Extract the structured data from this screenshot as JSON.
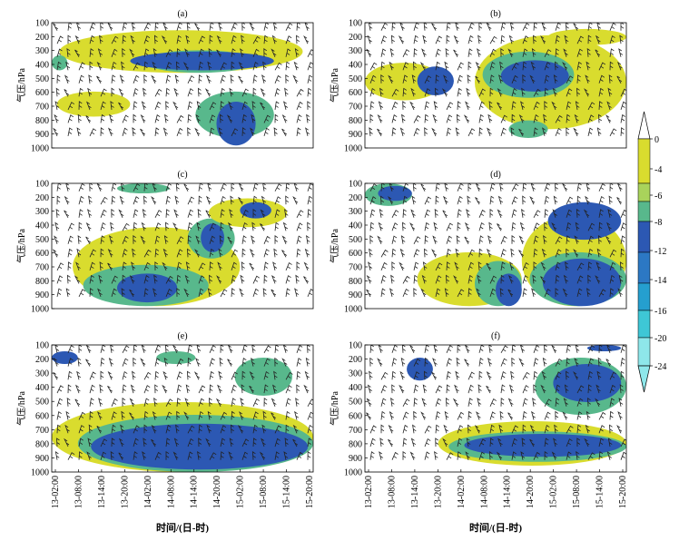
{
  "chart_data": [
    {
      "type": "heatmap",
      "panel_label": "(a)",
      "ylabel": "气压/hPa",
      "xlabel": "",
      "x_ticks": [],
      "y_ticks": [
        "100",
        "200",
        "300",
        "400",
        "500",
        "600",
        "700",
        "800",
        "900",
        "1000"
      ],
      "blobs": [
        {
          "x0": 0.03,
          "x1": 0.96,
          "y0": 0.06,
          "y1": 0.4,
          "level": "-4"
        },
        {
          "x0": 0.35,
          "x1": 0.78,
          "y0": 0.22,
          "y1": 0.4,
          "level": "-8"
        },
        {
          "x0": 0.3,
          "x1": 0.85,
          "y0": 0.23,
          "y1": 0.38,
          "level": "-12"
        },
        {
          "x0": 0.0,
          "x1": 0.06,
          "y0": 0.26,
          "y1": 0.38,
          "level": "-8"
        },
        {
          "x0": 0.55,
          "x1": 0.85,
          "y0": 0.55,
          "y1": 0.92,
          "level": "-8"
        },
        {
          "x0": 0.63,
          "x1": 0.78,
          "y0": 0.63,
          "y1": 0.98,
          "level": "-12"
        },
        {
          "x0": 0.02,
          "x1": 0.3,
          "y0": 0.55,
          "y1": 0.75,
          "level": "-4"
        }
      ]
    },
    {
      "type": "heatmap",
      "panel_label": "(b)",
      "ylabel": "气压/hPa",
      "xlabel": "",
      "x_ticks": [],
      "y_ticks": [
        "100",
        "200",
        "300",
        "400",
        "500",
        "600",
        "700",
        "800",
        "900",
        "1000"
      ],
      "blobs": [
        {
          "x0": 0.0,
          "x1": 0.3,
          "y0": 0.32,
          "y1": 0.62,
          "level": "-4"
        },
        {
          "x0": 0.42,
          "x1": 1.0,
          "y0": 0.1,
          "y1": 0.85,
          "level": "-4"
        },
        {
          "x0": 0.45,
          "x1": 0.8,
          "y0": 0.23,
          "y1": 0.6,
          "level": "-8"
        },
        {
          "x0": 0.52,
          "x1": 0.78,
          "y0": 0.3,
          "y1": 0.55,
          "level": "-12"
        },
        {
          "x0": 0.2,
          "x1": 0.34,
          "y0": 0.35,
          "y1": 0.58,
          "level": "-12"
        },
        {
          "x0": 0.55,
          "x1": 0.7,
          "y0": 0.78,
          "y1": 0.92,
          "level": "-8"
        },
        {
          "x0": 0.7,
          "x1": 1.0,
          "y0": 0.05,
          "y1": 0.18,
          "level": "-4"
        }
      ]
    },
    {
      "type": "heatmap",
      "panel_label": "(c)",
      "ylabel": "气压/hPa",
      "xlabel": "",
      "x_ticks": [],
      "y_ticks": [
        "100",
        "200",
        "300",
        "400",
        "500",
        "600",
        "700",
        "800",
        "900",
        "1000"
      ],
      "blobs": [
        {
          "x0": 0.08,
          "x1": 0.72,
          "y0": 0.35,
          "y1": 0.98,
          "level": "-4"
        },
        {
          "x0": 0.12,
          "x1": 0.6,
          "y0": 0.65,
          "y1": 0.98,
          "level": "-8"
        },
        {
          "x0": 0.25,
          "x1": 0.48,
          "y0": 0.72,
          "y1": 0.95,
          "level": "-12"
        },
        {
          "x0": 0.52,
          "x1": 0.7,
          "y0": 0.28,
          "y1": 0.6,
          "level": "-8"
        },
        {
          "x0": 0.57,
          "x1": 0.66,
          "y0": 0.32,
          "y1": 0.55,
          "level": "-12"
        },
        {
          "x0": 0.6,
          "x1": 0.9,
          "y0": 0.12,
          "y1": 0.35,
          "level": "-4"
        },
        {
          "x0": 0.72,
          "x1": 0.84,
          "y0": 0.15,
          "y1": 0.28,
          "level": "-12"
        },
        {
          "x0": 0.25,
          "x1": 0.45,
          "y0": 0.0,
          "y1": 0.08,
          "level": "-8"
        }
      ]
    },
    {
      "type": "heatmap",
      "panel_label": "(d)",
      "ylabel": "气压/hPa",
      "xlabel": "",
      "x_ticks": [],
      "y_ticks": [
        "100",
        "200",
        "300",
        "400",
        "500",
        "600",
        "700",
        "800",
        "900",
        "1000"
      ],
      "blobs": [
        {
          "x0": 0.0,
          "x1": 0.18,
          "y0": 0.0,
          "y1": 0.18,
          "level": "-8"
        },
        {
          "x0": 0.05,
          "x1": 0.18,
          "y0": 0.02,
          "y1": 0.14,
          "level": "-12"
        },
        {
          "x0": 0.2,
          "x1": 0.6,
          "y0": 0.55,
          "y1": 0.98,
          "level": "-4"
        },
        {
          "x0": 0.42,
          "x1": 0.6,
          "y0": 0.62,
          "y1": 0.98,
          "level": "-8"
        },
        {
          "x0": 0.5,
          "x1": 0.6,
          "y0": 0.72,
          "y1": 0.98,
          "level": "-12"
        },
        {
          "x0": 0.6,
          "x1": 1.0,
          "y0": 0.25,
          "y1": 0.98,
          "level": "-4"
        },
        {
          "x0": 0.63,
          "x1": 1.0,
          "y0": 0.55,
          "y1": 0.98,
          "level": "-8"
        },
        {
          "x0": 0.68,
          "x1": 0.98,
          "y0": 0.6,
          "y1": 0.98,
          "level": "-12"
        },
        {
          "x0": 0.7,
          "x1": 0.98,
          "y0": 0.15,
          "y1": 0.45,
          "level": "-12"
        }
      ]
    },
    {
      "type": "heatmap",
      "panel_label": "(e)",
      "ylabel": "气压/hPa",
      "xlabel": "时间/(日-时)",
      "x_ticks": [
        "13-02:00",
        "13-08:00",
        "13-14:00",
        "13-20:00",
        "14-02:00",
        "14-08:00",
        "14-14:00",
        "14-20:00",
        "15-02:00",
        "15-08:00",
        "15-14:00",
        "15-20:00"
      ],
      "y_ticks": [
        "100",
        "200",
        "300",
        "400",
        "500",
        "600",
        "700",
        "800",
        "900",
        "1000"
      ],
      "blobs": [
        {
          "x0": 0.0,
          "x1": 1.0,
          "y0": 0.45,
          "y1": 1.0,
          "level": "-4"
        },
        {
          "x0": 0.1,
          "x1": 1.0,
          "y0": 0.55,
          "y1": 1.0,
          "level": "-8"
        },
        {
          "x0": 0.15,
          "x1": 0.98,
          "y0": 0.62,
          "y1": 0.98,
          "level": "-12"
        },
        {
          "x0": 0.7,
          "x1": 0.92,
          "y0": 0.1,
          "y1": 0.4,
          "level": "-8"
        },
        {
          "x0": 0.0,
          "x1": 0.1,
          "y0": 0.05,
          "y1": 0.15,
          "level": "-12"
        },
        {
          "x0": 0.4,
          "x1": 0.55,
          "y0": 0.05,
          "y1": 0.15,
          "level": "-8"
        }
      ]
    },
    {
      "type": "heatmap",
      "panel_label": "(f)",
      "ylabel": "气压/hPa",
      "xlabel": "时间/(日-时)",
      "x_ticks": [
        "13-02:00",
        "13-08:00",
        "13-14:00",
        "13-20:00",
        "14-02:00",
        "14-08:00",
        "14-14:00",
        "14-20:00",
        "15-02:00",
        "15-08:00",
        "15-14:00",
        "15-20:00"
      ],
      "y_ticks": [
        "100",
        "200",
        "300",
        "400",
        "500",
        "600",
        "700",
        "800",
        "900",
        "1000"
      ],
      "blobs": [
        {
          "x0": 0.28,
          "x1": 1.0,
          "y0": 0.6,
          "y1": 0.95,
          "level": "-4"
        },
        {
          "x0": 0.32,
          "x1": 1.0,
          "y0": 0.68,
          "y1": 0.92,
          "level": "-8"
        },
        {
          "x0": 0.38,
          "x1": 0.98,
          "y0": 0.7,
          "y1": 0.88,
          "level": "-12"
        },
        {
          "x0": 0.65,
          "x1": 1.0,
          "y0": 0.1,
          "y1": 0.55,
          "level": "-8"
        },
        {
          "x0": 0.72,
          "x1": 0.98,
          "y0": 0.15,
          "y1": 0.45,
          "level": "-12"
        },
        {
          "x0": 0.16,
          "x1": 0.26,
          "y0": 0.1,
          "y1": 0.28,
          "level": "-12"
        },
        {
          "x0": 0.85,
          "x1": 0.98,
          "y0": 0.0,
          "y1": 0.05,
          "level": "-12"
        }
      ]
    }
  ],
  "colorbar": {
    "tick_labels": [
      "0",
      "-4",
      "-6",
      "-8",
      "-12",
      "-14",
      "-16",
      "-20",
      "-24"
    ],
    "colors": [
      "#ffffff",
      "#d9dc2e",
      "#a9d35b",
      "#58b88c",
      "#2c58b3",
      "#2c78c4",
      "#259fcf",
      "#3ec7d6",
      "#8ee7ea"
    ],
    "level_colors": {
      "-4": "#d9dc2e",
      "-6": "#a9d35b",
      "-8": "#58b88c",
      "-12": "#2c58b3",
      "-14": "#2c78c4",
      "-16": "#259fcf",
      "-20": "#3ec7d6",
      "-24": "#8ee7ea"
    }
  }
}
